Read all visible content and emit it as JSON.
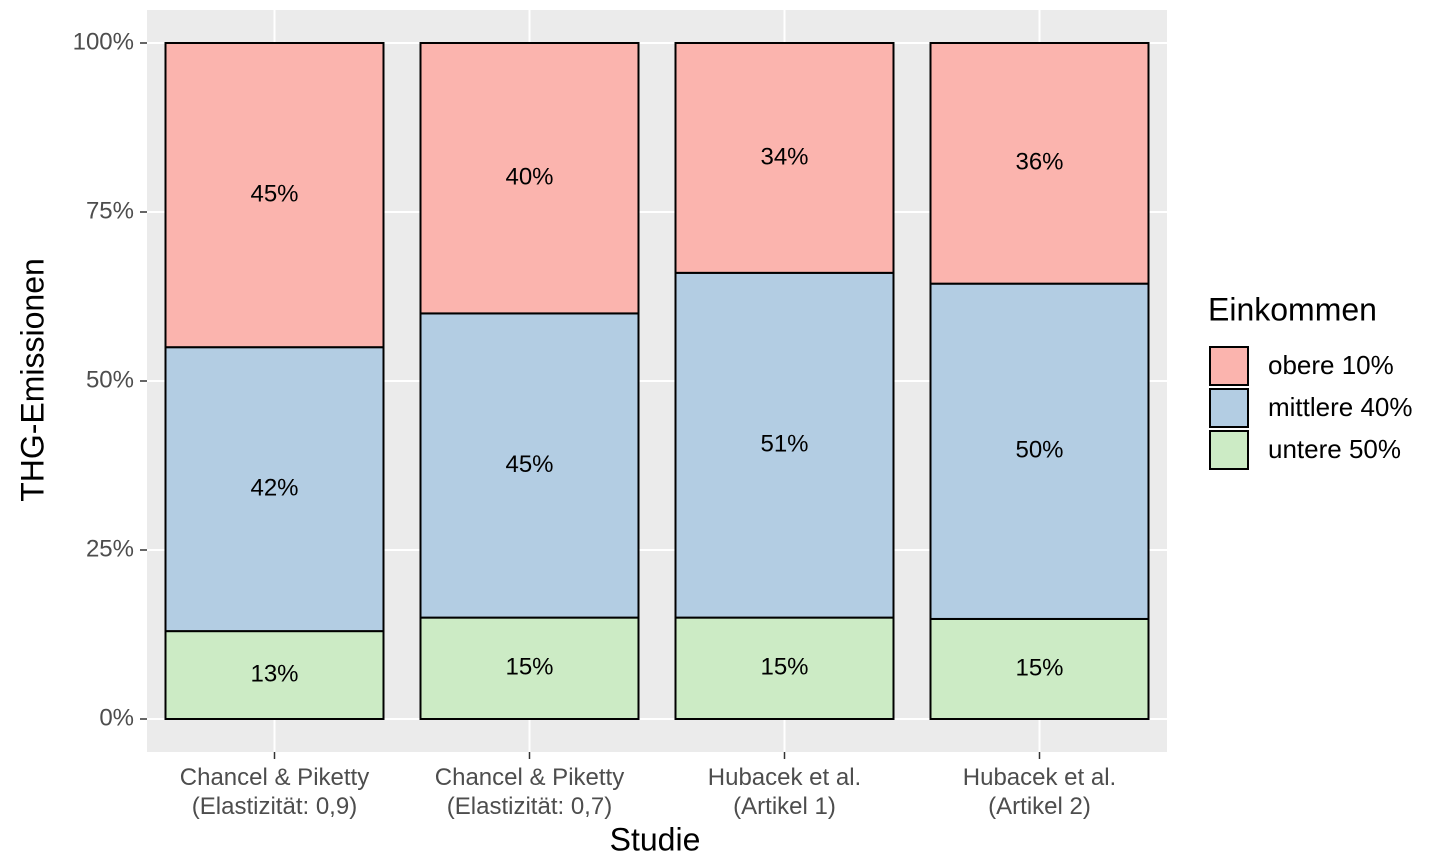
{
  "chart_data": {
    "type": "stacked_bar",
    "x_label": "Studie",
    "y_label": "THG-Emissionen",
    "legend_title": "Einkommen",
    "categories": [
      "Chancel & Piketty\n(Elastizität: 0,9)",
      "Chancel & Piketty\n(Elastizität: 0,7)",
      "Hubacek et al.\n(Artikel 1)",
      "Hubacek et al.\n(Artikel 2)"
    ],
    "series": [
      {
        "name": "untere 50%",
        "color": "#ccebc5",
        "values": [
          13,
          15,
          15,
          14.8
        ],
        "value_labels": [
          "13%",
          "15%",
          "15%",
          "15%"
        ]
      },
      {
        "name": "mittlere 40%",
        "color": "#b3cde3",
        "values": [
          42,
          45,
          51,
          49.6
        ],
        "value_labels": [
          "42%",
          "45%",
          "51%",
          "50%"
        ]
      },
      {
        "name": "obere 10%",
        "color": "#fbb4ae",
        "values": [
          45,
          40,
          34,
          35.6
        ],
        "value_labels": [
          "45%",
          "40%",
          "34%",
          "36%"
        ]
      }
    ],
    "ylim": [
      0,
      100
    ],
    "yticks": [
      {
        "value": 0,
        "label": "0%"
      },
      {
        "value": 25,
        "label": "25%"
      },
      {
        "value": 50,
        "label": "50%"
      },
      {
        "value": 75,
        "label": "75%"
      },
      {
        "value": 100,
        "label": "100%"
      }
    ],
    "grid": true,
    "legend_position": "right"
  }
}
